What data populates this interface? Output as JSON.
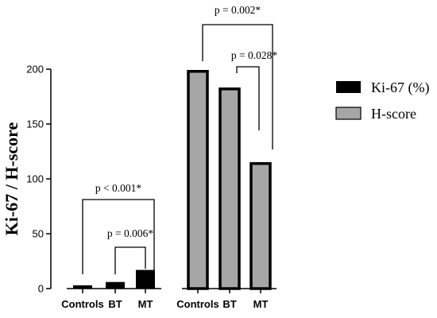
{
  "chart_data": {
    "type": "bar",
    "ylabel": "Ki-67 / H-score",
    "ylim": [
      0,
      200
    ],
    "yticks": [
      0,
      50,
      100,
      150,
      200
    ],
    "grid": false,
    "legend_position": "right",
    "groups": [
      {
        "series": "Ki-67 (%)",
        "color": "#000000",
        "categories": [
          "Controls",
          "BT",
          "MT"
        ],
        "values": [
          3,
          6,
          17
        ]
      },
      {
        "series": "H-score",
        "color": "#a6a6a6",
        "categories": [
          "Controls",
          "BT",
          "MT"
        ],
        "values": [
          198,
          182,
          114
        ]
      }
    ],
    "series": [
      {
        "name": "Ki-67 (%)",
        "color": "#000000"
      },
      {
        "name": "H-score",
        "color": "#a6a6a6"
      }
    ],
    "annotations": [
      {
        "group": 0,
        "from": "Controls",
        "to": "MT",
        "text": "p < 0.001*"
      },
      {
        "group": 0,
        "from": "BT",
        "to": "MT",
        "text": "p = 0.006*"
      },
      {
        "group": 1,
        "from": "Controls",
        "to": "MT",
        "text": "p = 0.002*"
      },
      {
        "group": 1,
        "from": "BT",
        "to": "MT",
        "text": "p = 0.028*"
      }
    ]
  }
}
